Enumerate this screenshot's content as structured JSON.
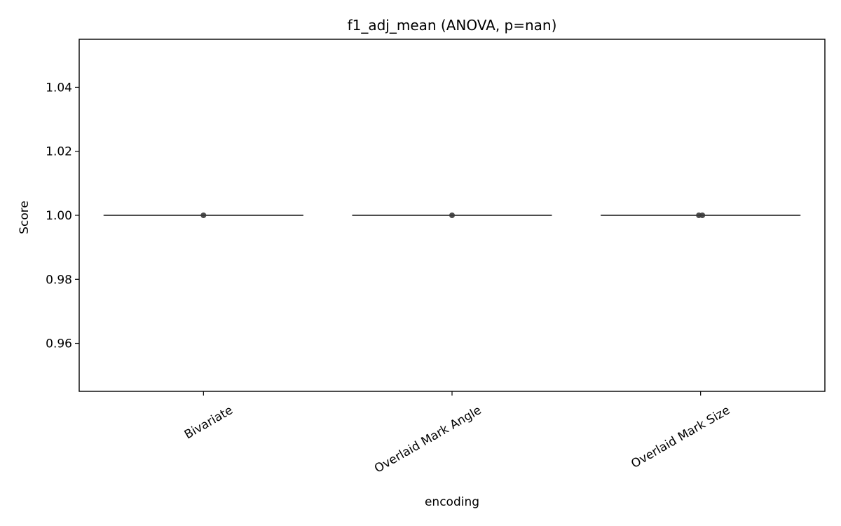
{
  "chart_data": {
    "type": "box",
    "title": "f1_adj_mean (ANOVA, p=nan)",
    "xlabel": "encoding",
    "ylabel": "Score",
    "categories": [
      "Bivariate",
      "Overlaid Mark Angle",
      "Overlaid Mark Size"
    ],
    "ylim": [
      0.945,
      1.055
    ],
    "yticks": [
      0.96,
      0.98,
      1.0,
      1.02,
      1.04
    ],
    "ytick_labels": [
      "0.96",
      "0.98",
      "1.00",
      "1.02",
      "1.04"
    ],
    "grid": false,
    "boxes": [
      {
        "category": "Bivariate",
        "min": 1.0,
        "q1": 1.0,
        "median": 1.0,
        "q3": 1.0,
        "max": 1.0
      },
      {
        "category": "Overlaid Mark Angle",
        "min": 1.0,
        "q1": 1.0,
        "median": 1.0,
        "q3": 1.0,
        "max": 1.0
      },
      {
        "category": "Overlaid Mark Size",
        "min": 1.0,
        "q1": 1.0,
        "median": 1.0,
        "q3": 1.0,
        "max": 1.0
      }
    ],
    "points": [
      {
        "category": "Bivariate",
        "y": 1.0
      },
      {
        "category": "Overlaid Mark Angle",
        "y": 1.0
      },
      {
        "category": "Overlaid Mark Size",
        "y": 1.0
      },
      {
        "category": "Overlaid Mark Size",
        "y": 1.0
      }
    ],
    "colors": {
      "box_line": "#4d4d4d",
      "point": "#3a3a3a",
      "axis": "#000000"
    }
  }
}
